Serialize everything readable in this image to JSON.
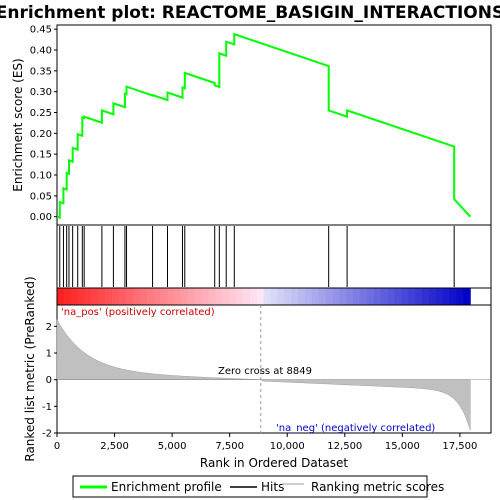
{
  "chart_data": {
    "title": "Enrichment plot: REACTOME_BASIGIN_INTERACTIONS",
    "type": "line",
    "xlabel": "Rank in Ordered Dataset",
    "top_ylabel": "Enrichment score (ES)",
    "bottom_ylabel": "Ranked list metric (PreRanked)",
    "xlim": [
      0,
      18000
    ],
    "x_ticks": [
      0,
      2500,
      5000,
      7500,
      10000,
      12500,
      15000,
      17500
    ],
    "x_tick_labels": [
      "0",
      "2,500",
      "5,000",
      "7,500",
      "10,000",
      "12,500",
      "15,000",
      "17,500"
    ],
    "es_ylim": [
      -0.02,
      0.46
    ],
    "es_ticks": [
      0.0,
      0.05,
      0.1,
      0.15,
      0.2,
      0.25,
      0.3,
      0.35,
      0.4,
      0.45
    ],
    "es_tick_labels": [
      "0.00",
      "0.05",
      "0.10",
      "0.15",
      "0.20",
      "0.25",
      "0.30",
      "0.35",
      "0.40",
      "0.45"
    ],
    "metric_ylim": [
      -2,
      2.8
    ],
    "metric_ticks": [
      -2,
      -1,
      0,
      1,
      2
    ],
    "metric_tick_labels": [
      "-2",
      "-1",
      "0",
      "1",
      "2"
    ],
    "hits": [
      120,
      280,
      420,
      520,
      680,
      900,
      1100,
      1180,
      1950,
      2450,
      2950,
      3020,
      4150,
      4800,
      5450,
      5550,
      6850,
      7050,
      7350,
      7700,
      11800,
      12600,
      17250
    ],
    "es_peaks": [
      0.035,
      0.068,
      0.105,
      0.135,
      0.165,
      0.198,
      0.238,
      0.24,
      0.255,
      0.272,
      0.295,
      0.312,
      0.292,
      0.298,
      0.31,
      0.345,
      0.315,
      0.392,
      0.42,
      0.438,
      0.255,
      0.255,
      0.042
    ],
    "es_end": 0.0,
    "es_descent_slope_per_rank": -1.87e-05,
    "metric_start": 2.25,
    "metric_end": -1.9,
    "series": [
      {
        "name": "Enrichment profile",
        "color": "#00ff00"
      },
      {
        "name": "Hits",
        "color": "#000000"
      },
      {
        "name": "Ranking metric scores",
        "color": "#c0c0c0"
      }
    ],
    "zero_cross_label": "Zero cross at 8849",
    "zero_cross": 8849,
    "pos_label": "'na_pos' (positively correlated)",
    "neg_label": "'na_neg' (negatively correlated)",
    "pos_color": "#cc0000",
    "neg_color": "#0000cc"
  }
}
